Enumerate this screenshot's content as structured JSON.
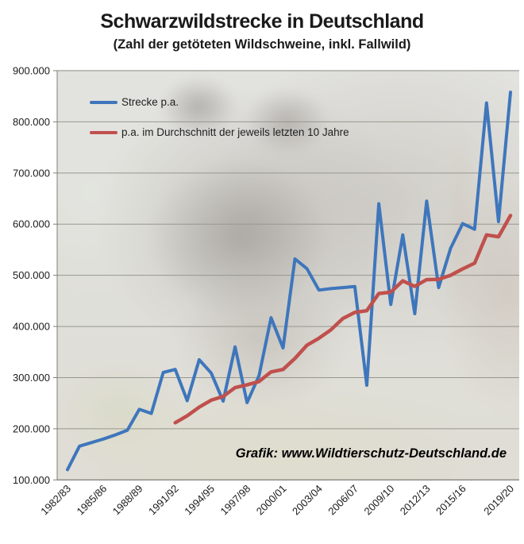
{
  "header": {
    "title": "Schwarzwildstrecke in Deutschland",
    "subtitle": "(Zahl der getöteten Wildschweine, inkl. Fallwild)"
  },
  "credit": "Grafik: www.Wildtierschutz-Deutschland.de",
  "colors": {
    "series_blue": "#3E76BC",
    "series_red": "#C0504D",
    "gridline": "#97978F",
    "axis": "#7F7F78",
    "text": "#1A1A1A"
  },
  "chart_data": {
    "type": "line",
    "title": "Schwarzwildstrecke in Deutschland",
    "subtitle": "(Zahl der getöteten Wildschweine, inkl. Fallwild)",
    "xlabel": "",
    "ylabel": "",
    "ylim": [
      100000,
      900000
    ],
    "y_tick_step": 100000,
    "grid": true,
    "legend_position": "inside-top-left",
    "y_ticks": [
      "100.000",
      "200.000",
      "300.000",
      "400.000",
      "500.000",
      "600.000",
      "700.000",
      "800.000",
      "900.000"
    ],
    "x_tick_labels": [
      "1982/83",
      "1985/86",
      "1988/89",
      "1991/92",
      "1994/95",
      "1997/98",
      "2000/01",
      "2003/04",
      "2006/07",
      "2009/10",
      "2012/13",
      "2015/16",
      "2019/20"
    ],
    "categories": [
      "1982/83",
      "1983/84",
      "1984/85",
      "1985/86",
      "1986/87",
      "1987/88",
      "1988/89",
      "1989/90",
      "1990/91",
      "1991/92",
      "1992/93",
      "1993/94",
      "1994/95",
      "1995/96",
      "1996/97",
      "1997/98",
      "1998/99",
      "1999/00",
      "2000/01",
      "2001/02",
      "2002/03",
      "2003/04",
      "2004/05",
      "2005/06",
      "2006/07",
      "2007/08",
      "2008/09",
      "2009/10",
      "2010/11",
      "2011/12",
      "2012/13",
      "2013/14",
      "2014/15",
      "2015/16",
      "2016/17",
      "2017/18",
      "2018/19",
      "2019/20"
    ],
    "series": [
      {
        "id": "strecke",
        "name": "Strecke p.a.",
        "color": "#3E76BC",
        "width": 4,
        "start_index": 0,
        "values": [
          120000,
          166000,
          173000,
          180000,
          188000,
          197000,
          238000,
          230000,
          310000,
          316000,
          255000,
          335000,
          309000,
          254000,
          360000,
          251000,
          304000,
          417000,
          358000,
          532000,
          513000,
          471000,
          474000,
          476000,
          478000,
          285000,
          640000,
          443000,
          579000,
          425000,
          645000,
          476000,
          553000,
          601000,
          590000,
          837000,
          605000,
          858000
        ]
      },
      {
        "id": "durchschnitt-10-jahre",
        "name": "p.a. im Durchschnitt der jeweils letzten 10 Jahre",
        "color": "#C0504D",
        "width": 4.5,
        "start_index": 9,
        "values": [
          211800,
          225300,
          242200,
          255800,
          263200,
          280400,
          285800,
          292400,
          311100,
          315900,
          337500,
          363300,
          376900,
          393400,
          415600,
          427400,
          430800,
          464400,
          467000,
          489100,
          478400,
          491600,
          492100,
          500000,
          512500,
          523700,
          578900,
          575400,
          616900
        ]
      }
    ]
  }
}
